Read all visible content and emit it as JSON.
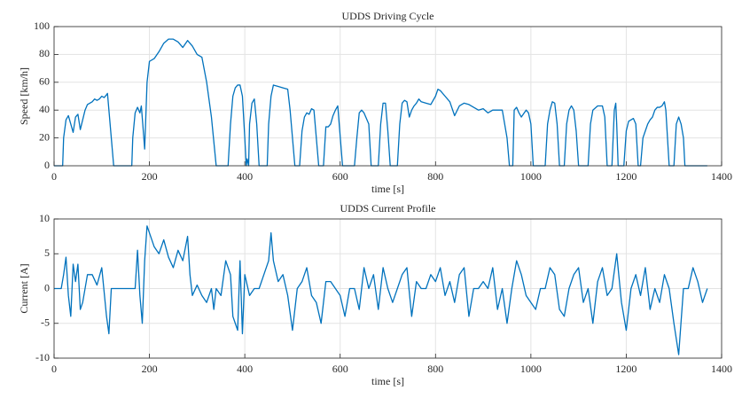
{
  "chart_data": [
    {
      "type": "line",
      "title": "UDDS Driving Cycle",
      "xlabel": "time [s]",
      "ylabel": "Speed [km/h]",
      "x": [
        0,
        18,
        20,
        25,
        30,
        35,
        40,
        45,
        50,
        55,
        60,
        65,
        70,
        80,
        85,
        90,
        95,
        100,
        105,
        110,
        112,
        115,
        120,
        125,
        163,
        165,
        170,
        175,
        180,
        183,
        186,
        190,
        195,
        200,
        210,
        220,
        230,
        240,
        250,
        260,
        270,
        280,
        290,
        300,
        310,
        320,
        330,
        340,
        365,
        370,
        375,
        380,
        385,
        390,
        395,
        400,
        403,
        405,
        408,
        410,
        415,
        420,
        425,
        430,
        447,
        450,
        455,
        460,
        470,
        480,
        490,
        495,
        500,
        505,
        515,
        520,
        525,
        530,
        535,
        540,
        545,
        550,
        555,
        565,
        570,
        575,
        580,
        585,
        590,
        595,
        598,
        605,
        630,
        635,
        640,
        645,
        650,
        660,
        665,
        680,
        685,
        690,
        695,
        700,
        705,
        720,
        725,
        730,
        735,
        740,
        745,
        750,
        755,
        760,
        765,
        770,
        780,
        790,
        800,
        805,
        810,
        820,
        830,
        840,
        850,
        860,
        870,
        880,
        890,
        900,
        910,
        920,
        930,
        940,
        945,
        950,
        955,
        962,
        965,
        970,
        975,
        980,
        990,
        995,
        1000,
        1005,
        1030,
        1035,
        1040,
        1045,
        1050,
        1055,
        1060,
        1070,
        1075,
        1080,
        1085,
        1090,
        1095,
        1100,
        1120,
        1125,
        1130,
        1140,
        1150,
        1155,
        1160,
        1170,
        1175,
        1178,
        1180,
        1183,
        1195,
        1200,
        1205,
        1210,
        1215,
        1220,
        1225,
        1230,
        1235,
        1240,
        1245,
        1250,
        1255,
        1260,
        1265,
        1270,
        1275,
        1280,
        1283,
        1290,
        1300,
        1305,
        1310,
        1315,
        1320,
        1323,
        1370
      ],
      "series": [
        {
          "color": "#0072bd",
          "values": [
            0,
            0,
            20,
            33,
            36,
            30,
            24,
            35,
            37,
            26,
            33,
            40,
            44,
            46,
            48,
            47,
            48,
            50,
            49,
            51,
            52,
            40,
            20,
            0,
            0,
            20,
            38,
            42,
            38,
            43,
            30,
            12,
            60,
            75,
            77,
            82,
            88,
            91,
            91,
            89,
            85,
            90,
            86,
            80,
            78,
            60,
            35,
            0,
            0,
            30,
            50,
            56,
            58,
            58,
            50,
            20,
            0,
            5,
            0,
            30,
            45,
            48,
            30,
            0,
            0,
            30,
            50,
            58,
            57,
            56,
            55,
            40,
            20,
            0,
            0,
            25,
            35,
            38,
            37,
            41,
            40,
            20,
            0,
            0,
            28,
            28,
            30,
            36,
            40,
            43,
            30,
            0,
            0,
            20,
            38,
            40,
            38,
            30,
            0,
            0,
            30,
            45,
            45,
            25,
            0,
            0,
            30,
            45,
            47,
            46,
            35,
            40,
            43,
            45,
            48,
            46,
            45,
            44,
            50,
            55,
            54,
            50,
            46,
            36,
            43,
            45,
            44,
            42,
            40,
            41,
            38,
            40,
            40,
            40,
            30,
            20,
            0,
            0,
            40,
            42,
            38,
            35,
            40,
            38,
            30,
            0,
            0,
            30,
            40,
            46,
            45,
            30,
            0,
            0,
            30,
            40,
            43,
            40,
            25,
            0,
            0,
            30,
            40,
            43,
            43,
            35,
            0,
            0,
            40,
            45,
            30,
            0,
            0,
            25,
            32,
            33,
            34,
            30,
            0,
            0,
            20,
            25,
            30,
            33,
            35,
            40,
            42,
            42,
            43,
            46,
            40,
            0,
            0,
            30,
            35,
            30,
            20,
            0,
            0
          ]
        }
      ],
      "xlim": [
        0,
        1400
      ],
      "ylim": [
        0,
        100
      ],
      "xticks": [
        0,
        200,
        400,
        600,
        800,
        1000,
        1200,
        1400
      ],
      "yticks": [
        0,
        20,
        40,
        60,
        80,
        100
      ],
      "grid": true
    },
    {
      "type": "line",
      "title": "UDDS Current Profile",
      "xlabel": "time [s]",
      "ylabel": "Current [A]",
      "x": [
        0,
        10,
        15,
        20,
        25,
        30,
        35,
        40,
        45,
        50,
        55,
        60,
        70,
        80,
        90,
        100,
        110,
        115,
        120,
        130,
        140,
        150,
        160,
        170,
        175,
        180,
        185,
        190,
        195,
        200,
        210,
        220,
        230,
        240,
        250,
        260,
        270,
        280,
        285,
        290,
        300,
        310,
        320,
        330,
        335,
        340,
        350,
        360,
        370,
        375,
        380,
        385,
        390,
        395,
        400,
        410,
        420,
        430,
        440,
        450,
        455,
        460,
        470,
        480,
        490,
        500,
        510,
        520,
        530,
        540,
        550,
        560,
        570,
        580,
        590,
        600,
        610,
        620,
        630,
        640,
        650,
        660,
        670,
        680,
        690,
        700,
        710,
        720,
        730,
        740,
        750,
        760,
        770,
        780,
        790,
        800,
        810,
        820,
        830,
        840,
        850,
        860,
        870,
        880,
        890,
        900,
        910,
        920,
        930,
        940,
        950,
        960,
        970,
        980,
        990,
        1000,
        1010,
        1020,
        1030,
        1040,
        1050,
        1060,
        1070,
        1080,
        1090,
        1100,
        1110,
        1120,
        1130,
        1140,
        1150,
        1160,
        1170,
        1180,
        1190,
        1200,
        1210,
        1220,
        1230,
        1240,
        1250,
        1260,
        1270,
        1280,
        1290,
        1300,
        1310,
        1320,
        1330,
        1340,
        1350,
        1360,
        1370
      ],
      "series": [
        {
          "color": "#0072bd",
          "values": [
            0,
            0,
            0,
            2,
            4.5,
            -1,
            -4,
            3.5,
            1,
            3.5,
            -3,
            -2,
            2,
            2,
            0.5,
            3,
            -4,
            -6.5,
            0,
            0,
            0,
            0,
            0,
            0,
            5.5,
            -1,
            -5,
            4,
            9,
            8,
            6,
            5,
            7,
            4.5,
            3,
            5.5,
            4,
            7.5,
            2,
            -1,
            0.5,
            -1,
            -2,
            0,
            -3,
            0,
            -1,
            4,
            2,
            -4,
            -5,
            -6,
            4,
            -6.5,
            2,
            -1,
            0,
            0,
            2,
            4,
            8,
            4,
            1,
            2,
            -1,
            -6,
            0,
            1,
            3,
            -1,
            -2,
            -5,
            1,
            1,
            0,
            -1,
            -4,
            0,
            0,
            -3,
            3,
            0,
            2,
            -3,
            3,
            0,
            -2,
            0,
            2,
            3,
            -4,
            1,
            0,
            0,
            2,
            1,
            3,
            -1,
            1,
            -2,
            2,
            3,
            -4,
            0,
            0,
            1,
            0,
            3,
            -3,
            0,
            -5,
            0,
            4,
            2,
            -1,
            -2,
            -3,
            0,
            0,
            3,
            2,
            -3,
            -4,
            0,
            2,
            3,
            -2,
            0,
            -5,
            1,
            3,
            -1,
            0,
            5,
            -2,
            -6,
            0,
            2,
            -1,
            3,
            -3,
            0,
            -2,
            2,
            0,
            -5,
            -9.5,
            0,
            0,
            3,
            1,
            -2,
            0
          ]
        }
      ],
      "xlim": [
        0,
        1400
      ],
      "ylim": [
        -10,
        10
      ],
      "xticks": [
        0,
        200,
        400,
        600,
        800,
        1000,
        1200,
        1400
      ],
      "yticks": [
        -10,
        -5,
        0,
        5,
        10
      ],
      "grid": true
    }
  ]
}
